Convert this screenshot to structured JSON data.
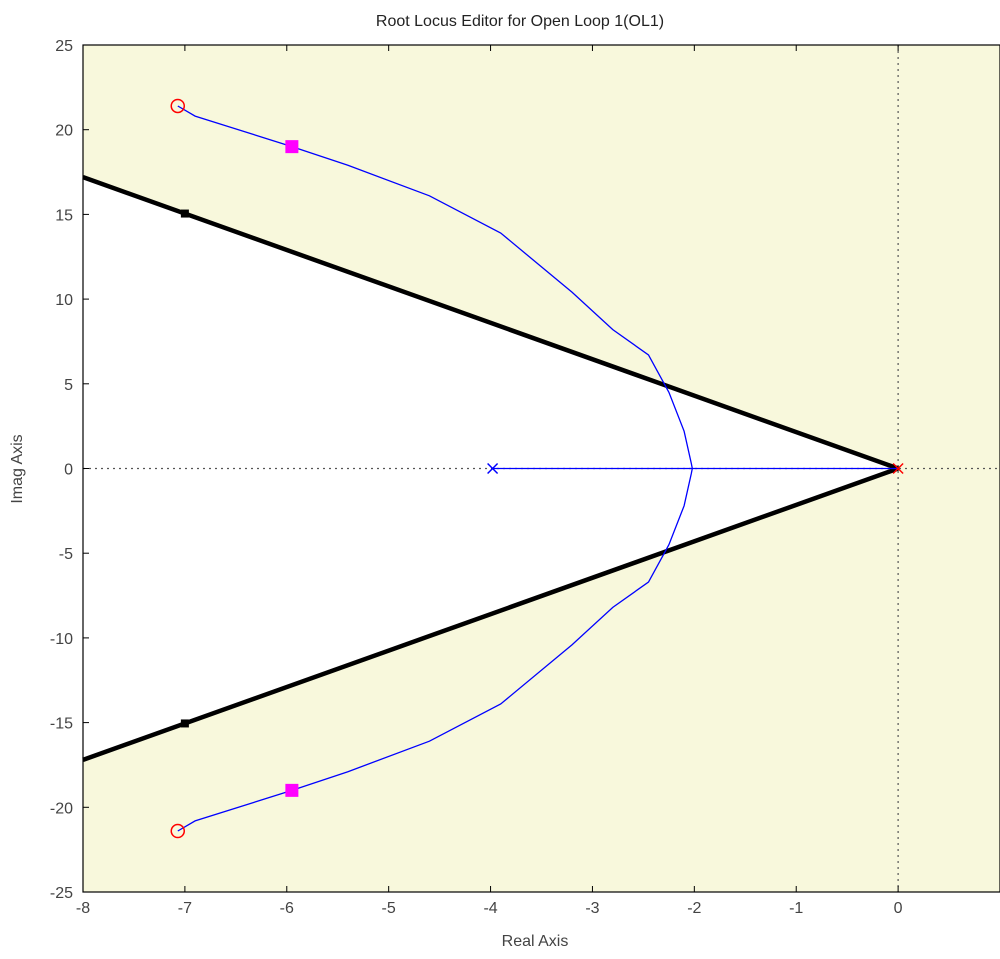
{
  "chart_data": {
    "type": "scatter",
    "title": "Root Locus Editor for Open Loop 1(OL1)",
    "xlabel": "Real Axis",
    "ylabel": "Imag Axis",
    "xlim": [
      -8,
      1
    ],
    "ylim": [
      -25,
      25
    ],
    "xticks": [
      -8,
      -7,
      -6,
      -5,
      -4,
      -3,
      -2,
      -1,
      0
    ],
    "yticks": [
      -25,
      -20,
      -15,
      -10,
      -5,
      0,
      5,
      10,
      15,
      20,
      25
    ],
    "grid": false,
    "legend": "none",
    "unstable_region": {
      "x_from": 0,
      "color": "#f8f8dc"
    },
    "stable_shading": {
      "color": "#f8f8dc",
      "note_text": ""
    },
    "design_constraint": {
      "color": "#000000",
      "upper_boundary": [
        [
          -8,
          17.2
        ],
        [
          0,
          0
        ]
      ],
      "lower_boundary": [
        [
          -8,
          -17.2
        ],
        [
          0,
          0
        ]
      ],
      "handles": [
        [
          -7,
          15.05
        ],
        [
          -7,
          -15.05
        ]
      ]
    },
    "series": [
      {
        "kind": "locus_branch",
        "color": "#0000ff",
        "points": [
          [
            -7.07,
            21.4
          ],
          [
            -6.9,
            20.8
          ],
          [
            -5.95,
            19.0
          ],
          [
            -5.4,
            17.9
          ],
          [
            -4.6,
            16.1
          ],
          [
            -3.9,
            13.9
          ],
          [
            -3.2,
            10.4
          ],
          [
            -2.8,
            8.2
          ],
          [
            -2.45,
            6.7
          ],
          [
            -2.25,
            4.5
          ],
          [
            -2.1,
            2.2
          ],
          [
            -2.03,
            0.3
          ],
          [
            -2.02,
            0
          ]
        ]
      },
      {
        "kind": "locus_branch",
        "color": "#0000ff",
        "points": [
          [
            -7.07,
            -21.4
          ],
          [
            -6.9,
            -20.8
          ],
          [
            -5.95,
            -19.0
          ],
          [
            -5.4,
            -17.9
          ],
          [
            -4.6,
            -16.1
          ],
          [
            -3.9,
            -13.9
          ],
          [
            -3.2,
            -10.4
          ],
          [
            -2.8,
            -8.2
          ],
          [
            -2.45,
            -6.7
          ],
          [
            -2.25,
            -4.5
          ],
          [
            -2.1,
            -2.2
          ],
          [
            -2.03,
            -0.3
          ],
          [
            -2.02,
            0
          ]
        ]
      },
      {
        "kind": "locus_branch",
        "color": "#0000ff",
        "points": [
          [
            -3.98,
            0
          ],
          [
            0,
            0
          ]
        ]
      }
    ],
    "open_loop_poles": [
      {
        "x": 0,
        "y": 0,
        "color": "#ff0000"
      },
      {
        "x": -3.98,
        "y": 0,
        "color": "#0000ff"
      }
    ],
    "open_loop_zeros": [
      {
        "x": -7.07,
        "y": 21.4,
        "color": "#ff0000"
      },
      {
        "x": -7.07,
        "y": -21.4,
        "color": "#ff0000"
      }
    ],
    "closed_loop_poles": [
      {
        "x": -5.95,
        "y": 19.0,
        "color": "#ff00ff"
      },
      {
        "x": -5.95,
        "y": -19.0,
        "color": "#ff00ff"
      }
    ]
  }
}
